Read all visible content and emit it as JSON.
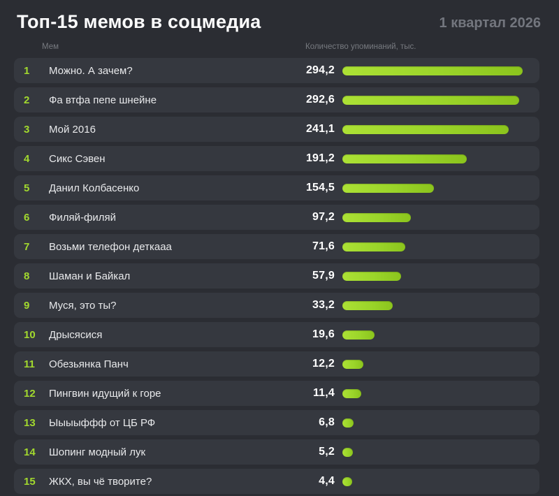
{
  "header": {
    "title": "Топ-15 мемов в соцмедиа",
    "period": "1 квартал 2026"
  },
  "columns": {
    "meme": "Мем",
    "mentions": "Количество упоминаний, тыс."
  },
  "colors": {
    "page_bg": "#2b2d33",
    "card_bg": "#35383f",
    "accent_green": "#a2d92e",
    "bar_gradient_start": "#ace135",
    "bar_gradient_end": "#8bc41d",
    "title_text": "#fdfdfe",
    "muted_text": "#73767e"
  },
  "chart_data": {
    "type": "bar",
    "orientation": "horizontal",
    "title": "Топ-15 мемов в соцмедиа",
    "subtitle": "1 квартал 2026",
    "xlabel": "Количество упоминаний, тыс.",
    "ylabel": "Мем",
    "xlim": [
      0,
      300
    ],
    "grid": false,
    "legend": false,
    "categories": [
      "Можно. А зачем?",
      "Фа втфа пепе шнейне",
      "Мой 2016",
      "Сикс Сэвен",
      "Данил Колбасенко",
      "Филяй-филяй",
      "Возьми телефон деткааа",
      "Шаман и Байкал",
      "Муся, это ты?",
      "Дрысясися",
      "Обезьянка Панч",
      "Пингвин идущий к горе",
      "Ыыыыффф от ЦБ РФ",
      "Шопинг модный лук",
      "ЖКХ, вы чё творите?"
    ],
    "values": [
      294.2,
      292.6,
      241.1,
      191.2,
      154.5,
      97.2,
      71.6,
      57.9,
      33.2,
      19.6,
      12.2,
      11.4,
      6.8,
      5.2,
      4.4
    ],
    "rows": [
      {
        "rank": "1",
        "label": "Можно. А зачем?",
        "value": 294.2,
        "value_label": "294,2",
        "bar_pct": 95
      },
      {
        "rank": "2",
        "label": "Фа втфа пепе шнейне",
        "value": 292.6,
        "value_label": "292,6",
        "bar_pct": 93
      },
      {
        "rank": "3",
        "label": "Мой 2016",
        "value": 241.1,
        "value_label": "241,1",
        "bar_pct": 87.5
      },
      {
        "rank": "4",
        "label": "Сикс Сэвен",
        "value": 191.2,
        "value_label": "191,2",
        "bar_pct": 65.5
      },
      {
        "rank": "5",
        "label": "Данил Колбасенко",
        "value": 154.5,
        "value_label": "154,5",
        "bar_pct": 48
      },
      {
        "rank": "6",
        "label": "Филяй-филяй",
        "value": 97.2,
        "value_label": "97,2",
        "bar_pct": 36
      },
      {
        "rank": "7",
        "label": "Возьми телефон деткааа",
        "value": 71.6,
        "value_label": "71,6",
        "bar_pct": 33
      },
      {
        "rank": "8",
        "label": "Шаман и Байкал",
        "value": 57.9,
        "value_label": "57,9",
        "bar_pct": 31
      },
      {
        "rank": "9",
        "label": "Муся, это ты?",
        "value": 33.2,
        "value_label": "33,2",
        "bar_pct": 26.5
      },
      {
        "rank": "10",
        "label": "Дрысясися",
        "value": 19.6,
        "value_label": "19,6",
        "bar_pct": 17
      },
      {
        "rank": "11",
        "label": "Обезьянка Панч",
        "value": 12.2,
        "value_label": "12,2",
        "bar_pct": 11
      },
      {
        "rank": "12",
        "label": "Пингвин идущий к горе",
        "value": 11.4,
        "value_label": "11,4",
        "bar_pct": 10
      },
      {
        "rank": "13",
        "label": "Ыыыыффф от ЦБ РФ",
        "value": 6.8,
        "value_label": "6,8",
        "bar_pct": 6
      },
      {
        "rank": "14",
        "label": "Шопинг модный лук",
        "value": 5.2,
        "value_label": "5,2",
        "bar_pct": 5.5
      },
      {
        "rank": "15",
        "label": "ЖКХ, вы чё творите?",
        "value": 4.4,
        "value_label": "4,4",
        "bar_pct": 5
      }
    ]
  }
}
